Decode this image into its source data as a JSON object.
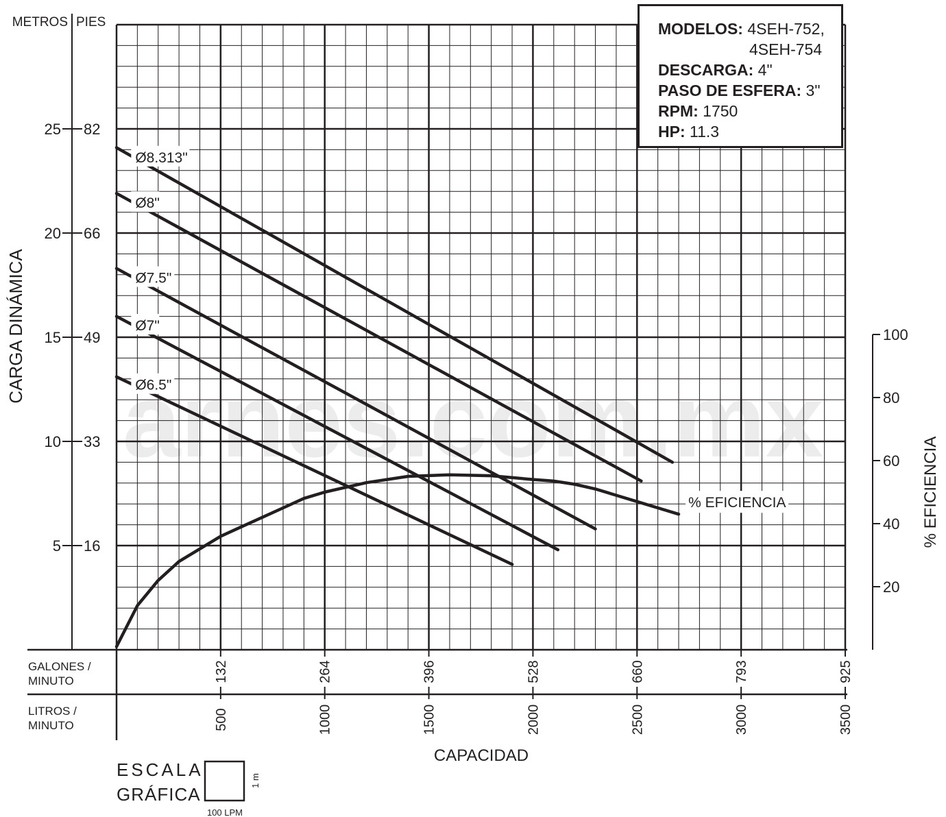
{
  "watermark": "arnes.com.mx",
  "info_box": {
    "models_label": "MODELOS:",
    "models_line1": "4SEH-752,",
    "models_line2": "4SEH-754",
    "discharge_label": "DESCARGA:",
    "discharge_value": "4\"",
    "ball_label": "PASO DE ESFERA:",
    "ball_value": "3\"",
    "rpm_label": "RPM:",
    "rpm_value": "1750",
    "hp_label": "HP:",
    "hp_value": "11.3"
  },
  "scale_box": {
    "label_line1": "ESCALA",
    "label_line2": "GRÁFICA",
    "width_label": "100 LPM",
    "height_label": "1 m"
  },
  "chart_data": {
    "type": "line",
    "xlabel": "CAPACIDAD",
    "ylabel": "CARGA DINÁMICA",
    "y2label": "% EFICIENCIA",
    "xlim": [
      0,
      3500
    ],
    "ylim": [
      0,
      30
    ],
    "y2lim": [
      0,
      100
    ],
    "grid": true,
    "x_axis_litros_label": [
      "LITROS /",
      "MINUTO"
    ],
    "x_axis_galones_label": [
      "GALONES /",
      "MINUTO"
    ],
    "x_ticks_litros": [
      "500",
      "1000",
      "1500",
      "2000",
      "2500",
      "3000",
      "3500"
    ],
    "x_ticks_galones": [
      "132",
      "264",
      "396",
      "528",
      "660",
      "793",
      "925"
    ],
    "y_unit_metros": "METROS",
    "y_unit_pies": "PIES",
    "y_ticks_metros": [
      "5",
      "10",
      "15",
      "20",
      "25"
    ],
    "y_ticks_pies": [
      "16",
      "33",
      "49",
      "66",
      "82"
    ],
    "y2_ticks": [
      "20",
      "40",
      "60",
      "80",
      "100"
    ],
    "series": [
      {
        "name": "Ø8.313\"",
        "x": [
          0,
          2670
        ],
        "y": [
          24.1,
          9.0
        ]
      },
      {
        "name": "Ø8\"",
        "x": [
          0,
          2520
        ],
        "y": [
          21.9,
          8.1
        ]
      },
      {
        "name": "Ø7.5\"",
        "x": [
          0,
          2300
        ],
        "y": [
          18.3,
          5.8
        ]
      },
      {
        "name": "Ø7\"",
        "x": [
          0,
          2120
        ],
        "y": [
          16.0,
          4.8
        ]
      },
      {
        "name": "Ø6.5\"",
        "x": [
          0,
          1900
        ],
        "y": [
          13.1,
          4.1
        ]
      },
      {
        "name": "% EFICIENCIA",
        "axis": "y2",
        "x": [
          0,
          100,
          200,
          300,
          400,
          500,
          600,
          700,
          800,
          900,
          1000,
          1200,
          1400,
          1600,
          1800,
          2000,
          2100,
          2200,
          2300,
          2400,
          2500,
          2600,
          2700
        ],
        "y": [
          1,
          14,
          22,
          28,
          32,
          36,
          39,
          42,
          45,
          48,
          50,
          53,
          55,
          55.5,
          55.2,
          54,
          53.5,
          52.5,
          51,
          49,
          47,
          45,
          43
        ]
      }
    ]
  }
}
